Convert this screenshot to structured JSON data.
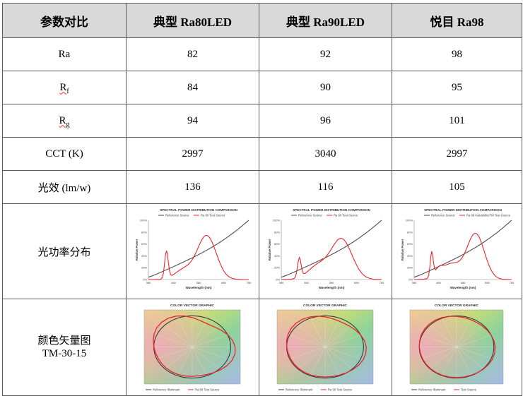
{
  "table": {
    "headers": [
      "参数对比",
      "典型 Ra80LED",
      "典型 Ra90LED",
      "悦目 Ra98"
    ],
    "rows": [
      {
        "label": "Ra",
        "values": [
          "82",
          "92",
          "98"
        ]
      },
      {
        "label_main": "R",
        "label_sub": "f",
        "values": [
          "84",
          "90",
          "95"
        ]
      },
      {
        "label_main": "R",
        "label_sub": "g",
        "values": [
          "94",
          "96",
          "101"
        ]
      },
      {
        "label": "CCT (K)",
        "values": [
          "2997",
          "3040",
          "2997"
        ]
      },
      {
        "label": "光效 (lm/w)",
        "values": [
          "136",
          "116",
          "105"
        ]
      }
    ],
    "spd_row_label": "光功率分布",
    "tm_row_label_1": "颜色矢量图",
    "tm_row_label_2": "TM-30-15"
  },
  "spd_charts": [
    {
      "title": "SPECTRAL POWER DISTRIBUTION COMPARISON",
      "legend_ref": "Reference Source",
      "legend_test": "Ra 80 Test Source"
    },
    {
      "title": "SPECTRAL POWER DISTRIBUTION COMPARISON",
      "legend_ref": "Reference Source",
      "legend_test": "Ra 90 Test Source"
    },
    {
      "title": "SPECTRAL POWER DISTRIBUTION COMPARISON",
      "legend_ref": "Reference Source",
      "legend_test": "Ra 98 Kaleidolite/TM Test Source"
    }
  ],
  "spd_axis": {
    "xlabel": "Wavelength (nm)",
    "ylabel": "Relative Power",
    "xticks": [
      "380",
      "430",
      "480",
      "530",
      "580",
      "630",
      "680",
      "730",
      "780"
    ],
    "yticks": [
      "0%",
      "20%",
      "40%",
      "60%",
      "80%",
      "100%"
    ]
  },
  "cvg_charts": [
    {
      "title": "COLOR VECTOR GRAPHIC",
      "legend_ref": "Reference Illuminant",
      "legend_test": "Ra 80 Test Source"
    },
    {
      "title": "COLOR VECTOR GRAPHIC",
      "legend_ref": "Reference Illuminant",
      "legend_test": "Ra 90 Test Source"
    },
    {
      "title": "COLOR VECTOR GRAPHIC",
      "legend_ref": "Reference Illuminant",
      "legend_test": "Test Source"
    }
  ],
  "colors": {
    "header_bg": "#d9d9d9",
    "border": "#5b5b5b",
    "ref_line": "#4d4d4d",
    "test_line": "#e8262b"
  }
}
